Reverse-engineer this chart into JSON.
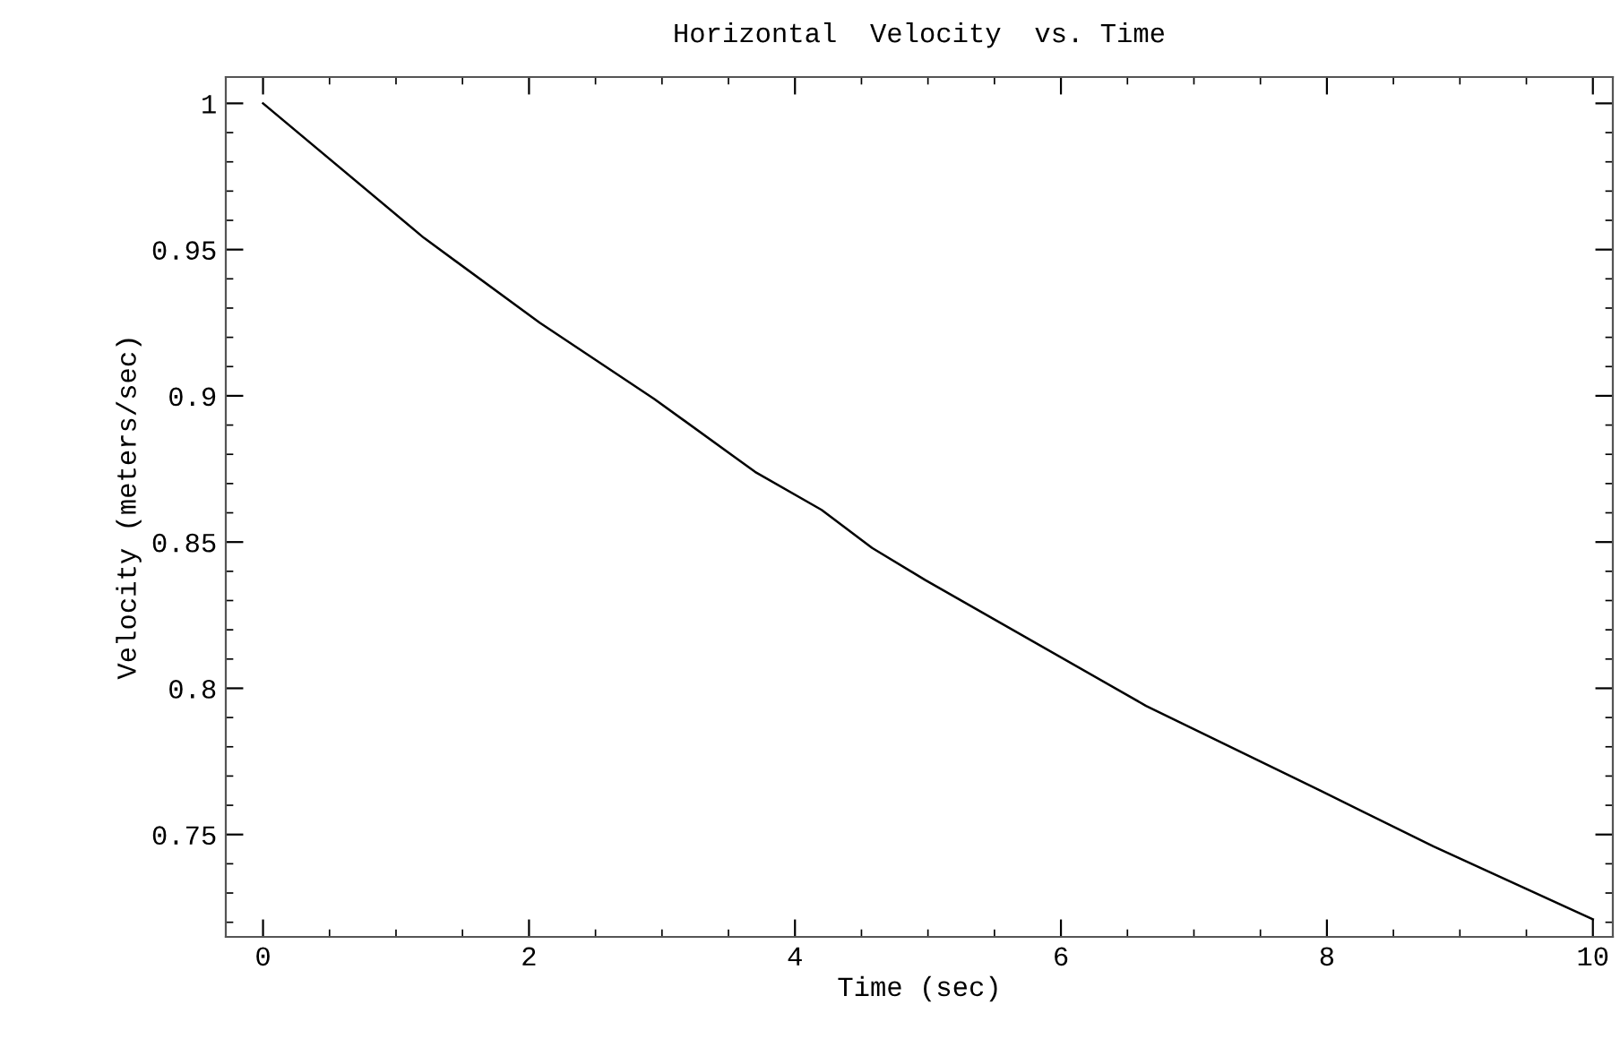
{
  "chart_data": {
    "type": "line",
    "title": "Horizontal  Velocity  vs. Time",
    "xlabel": "Time (sec)",
    "ylabel": "Velocity (meters/sec)",
    "x": [
      0,
      1.21,
      2.08,
      2.94,
      3.7,
      4.2,
      4.58,
      4.98,
      6.64,
      7.95,
      8.8,
      10.0
    ],
    "series": [
      {
        "color": "#000000",
        "values": [
          1.0,
          0.954,
          0.925,
          0.899,
          0.874,
          0.861,
          0.848,
          0.837,
          0.794,
          0.765,
          0.746,
          0.721
        ]
      }
    ],
    "xlim": [
      -0.28,
      10.15
    ],
    "ylim": [
      0.715,
      1.009
    ],
    "xticks": [
      0,
      2,
      4,
      6,
      8,
      10
    ],
    "yticks": [
      {
        "value": 0.75,
        "label": "0.75"
      },
      {
        "value": 0.8,
        "label": "0.8"
      },
      {
        "value": 0.85,
        "label": "0.85"
      },
      {
        "value": 0.9,
        "label": "0.9"
      },
      {
        "value": 0.95,
        "label": "0.95"
      },
      {
        "value": 1,
        "label": "1"
      }
    ],
    "grid": false,
    "legend": false,
    "marker": "none",
    "line_style": "solid"
  }
}
